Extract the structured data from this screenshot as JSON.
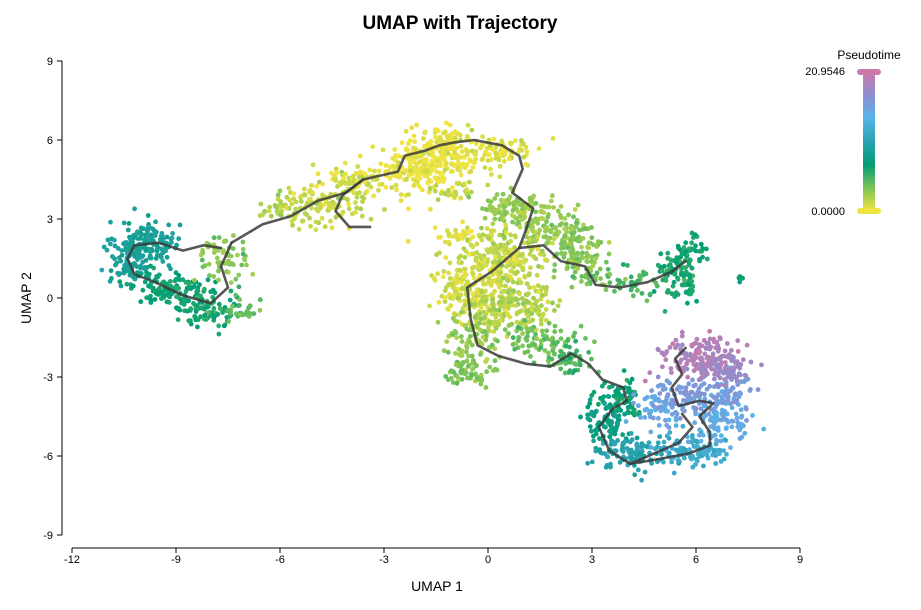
{
  "chart_data": {
    "type": "scatter",
    "title": "UMAP with Trajectory",
    "xlabel": "UMAP 1",
    "ylabel": "UMAP 2",
    "xlim": [
      -12,
      9
    ],
    "ylim": [
      -9,
      9
    ],
    "x_ticks": [
      "-12",
      "-9",
      "-6",
      "-3",
      "0",
      "3",
      "6",
      "9"
    ],
    "y_ticks": [
      "9",
      "6",
      "3",
      "0",
      "-3",
      "-6",
      "-9"
    ],
    "grid": false,
    "color_by": "Pseudotime",
    "colorbar": {
      "title": "Pseudotime",
      "min_label": "0.0000",
      "max_label": "20.9546",
      "min": 0,
      "max": 20.9546,
      "colors": [
        "#f0e442",
        "#7cc35a",
        "#009e73",
        "#2aa1b0",
        "#56b4e9",
        "#8e8ed0",
        "#cc79a7"
      ],
      "placement": "top-right"
    },
    "clusters": [
      {
        "cx": -9.8,
        "cy": 2.1,
        "sx": 0.45,
        "sy": 0.4,
        "n": 160,
        "pt": 9.0
      },
      {
        "cx": -10.3,
        "cy": 1.2,
        "sx": 0.35,
        "sy": 0.4,
        "n": 70,
        "pt": 9.2
      },
      {
        "cx": -9.0,
        "cy": 0.3,
        "sx": 0.6,
        "sy": 0.3,
        "n": 120,
        "pt": 6.8
      },
      {
        "cx": -8.0,
        "cy": -0.5,
        "sx": 0.5,
        "sy": 0.3,
        "n": 80,
        "pt": 6.2
      },
      {
        "cx": -7.6,
        "cy": 1.5,
        "sx": 0.35,
        "sy": 0.5,
        "n": 60,
        "pt": 3.2
      },
      {
        "cx": -7.1,
        "cy": -0.3,
        "sx": 0.3,
        "sy": 0.3,
        "n": 25,
        "pt": 4.0
      },
      {
        "cx": -6.0,
        "cy": 3.4,
        "sx": 0.35,
        "sy": 0.2,
        "n": 30,
        "pt": 2.0
      },
      {
        "cx": -4.7,
        "cy": 3.6,
        "sx": 0.7,
        "sy": 0.5,
        "n": 130,
        "pt": 1.3
      },
      {
        "cx": -3.8,
        "cy": 4.5,
        "sx": 0.5,
        "sy": 0.3,
        "n": 60,
        "pt": 0.6
      },
      {
        "cx": -2.0,
        "cy": 4.9,
        "sx": 0.6,
        "sy": 0.5,
        "n": 190,
        "pt": 0.2
      },
      {
        "cx": -1.2,
        "cy": 5.7,
        "sx": 0.6,
        "sy": 0.35,
        "n": 130,
        "pt": 0.1
      },
      {
        "cx": 0.3,
        "cy": 5.5,
        "sx": 0.5,
        "sy": 0.4,
        "n": 80,
        "pt": 0.7
      },
      {
        "cx": -1.0,
        "cy": 4.1,
        "sx": 0.4,
        "sy": 0.3,
        "n": 30,
        "pt": 1.4
      },
      {
        "cx": -0.7,
        "cy": 2.4,
        "sx": 0.5,
        "sy": 0.25,
        "n": 40,
        "pt": 0.5
      },
      {
        "cx": 0.8,
        "cy": 3.3,
        "sx": 0.5,
        "sy": 0.4,
        "n": 130,
        "pt": 2.6
      },
      {
        "cx": 2.1,
        "cy": 2.5,
        "sx": 0.5,
        "sy": 0.4,
        "n": 110,
        "pt": 2.8
      },
      {
        "cx": 2.6,
        "cy": 1.5,
        "sx": 0.4,
        "sy": 0.4,
        "n": 70,
        "pt": 3.3
      },
      {
        "cx": 3.3,
        "cy": 0.8,
        "sx": 0.4,
        "sy": 0.3,
        "n": 30,
        "pt": 3.8
      },
      {
        "cx": 0.5,
        "cy": 1.6,
        "sx": 0.6,
        "sy": 0.5,
        "n": 170,
        "pt": 1.5
      },
      {
        "cx": -0.4,
        "cy": 0.4,
        "sx": 0.55,
        "sy": 0.6,
        "n": 210,
        "pt": 0.9
      },
      {
        "cx": 0.7,
        "cy": -0.3,
        "sx": 0.6,
        "sy": 0.5,
        "n": 170,
        "pt": 1.8
      },
      {
        "cx": -0.4,
        "cy": -1.4,
        "sx": 0.4,
        "sy": 0.5,
        "n": 90,
        "pt": 2.6
      },
      {
        "cx": -0.6,
        "cy": -2.8,
        "sx": 0.35,
        "sy": 0.25,
        "n": 60,
        "pt": 3.2
      },
      {
        "cx": 1.6,
        "cy": -1.6,
        "sx": 0.6,
        "sy": 0.4,
        "n": 90,
        "pt": 3.8
      },
      {
        "cx": 2.4,
        "cy": -2.3,
        "sx": 0.35,
        "sy": 0.3,
        "n": 40,
        "pt": 5.2
      },
      {
        "cx": 5.4,
        "cy": 1.1,
        "sx": 0.3,
        "sy": 0.3,
        "n": 55,
        "pt": 6.3
      },
      {
        "cx": 5.8,
        "cy": 1.7,
        "sx": 0.3,
        "sy": 0.3,
        "n": 40,
        "pt": 6.8
      },
      {
        "cx": 4.5,
        "cy": 0.6,
        "sx": 0.4,
        "sy": 0.3,
        "n": 35,
        "pt": 5.2
      },
      {
        "cx": 5.5,
        "cy": 0.3,
        "sx": 0.3,
        "sy": 0.3,
        "n": 25,
        "pt": 6.5
      },
      {
        "cx": 7.3,
        "cy": 0.7,
        "sx": 0.06,
        "sy": 0.06,
        "n": 5,
        "pt": 7.0
      },
      {
        "cx": 3.8,
        "cy": -3.8,
        "sx": 0.3,
        "sy": 0.35,
        "n": 70,
        "pt": 7.0
      },
      {
        "cx": 3.4,
        "cy": -4.8,
        "sx": 0.35,
        "sy": 0.45,
        "n": 90,
        "pt": 8.0
      },
      {
        "cx": 4.2,
        "cy": -5.9,
        "sx": 0.6,
        "sy": 0.3,
        "n": 110,
        "pt": 10.5
      },
      {
        "cx": 5.8,
        "cy": -5.8,
        "sx": 0.5,
        "sy": 0.3,
        "n": 100,
        "pt": 12.3
      },
      {
        "cx": 6.7,
        "cy": -4.6,
        "sx": 0.4,
        "sy": 0.5,
        "n": 100,
        "pt": 14.8
      },
      {
        "cx": 7.1,
        "cy": -3.5,
        "sx": 0.3,
        "sy": 0.4,
        "n": 60,
        "pt": 16.0
      },
      {
        "cx": 4.9,
        "cy": -4.2,
        "sx": 0.35,
        "sy": 0.35,
        "n": 60,
        "pt": 15.0
      },
      {
        "cx": 5.8,
        "cy": -3.7,
        "sx": 0.45,
        "sy": 0.35,
        "n": 70,
        "pt": 16.5
      },
      {
        "cx": 6.1,
        "cy": -2.2,
        "sx": 0.6,
        "sy": 0.4,
        "n": 140,
        "pt": 19.5
      },
      {
        "cx": 6.8,
        "cy": -2.7,
        "sx": 0.4,
        "sy": 0.3,
        "n": 60,
        "pt": 18.5
      }
    ],
    "trajectory": [
      [
        [
          -7.4,
          2.1
        ],
        [
          -6.5,
          2.8
        ],
        [
          -5.7,
          3.1
        ],
        [
          -4.9,
          3.7
        ],
        [
          -4.1,
          4.0
        ],
        [
          -3.6,
          4.5
        ],
        [
          -2.6,
          4.8
        ],
        [
          -2.4,
          5.4
        ],
        [
          -1.8,
          5.6
        ],
        [
          -1.4,
          5.8
        ],
        [
          -1.0,
          5.9
        ],
        [
          -0.4,
          6.0
        ],
        [
          0.4,
          5.8
        ],
        [
          0.9,
          5.4
        ],
        [
          1.0,
          4.9
        ],
        [
          0.7,
          4.0
        ],
        [
          1.3,
          3.4
        ],
        [
          1.1,
          2.6
        ],
        [
          0.9,
          1.9
        ]
      ],
      [
        [
          -3.6,
          4.5
        ],
        [
          -4.2,
          3.9
        ],
        [
          -4.4,
          3.3
        ],
        [
          -4.0,
          2.7
        ],
        [
          -3.4,
          2.7
        ]
      ],
      [
        [
          -7.4,
          2.1
        ],
        [
          -7.7,
          1.2
        ],
        [
          -7.5,
          0.4
        ],
        [
          -8.0,
          -0.2
        ],
        [
          -8.8,
          0.1
        ],
        [
          -9.6,
          0.6
        ],
        [
          -10.2,
          0.9
        ],
        [
          -10.4,
          1.5
        ],
        [
          -10.2,
          2.0
        ],
        [
          -9.5,
          2.1
        ],
        [
          -8.8,
          1.8
        ],
        [
          -8.2,
          2.0
        ],
        [
          -7.7,
          1.9
        ]
      ],
      [
        [
          0.9,
          1.9
        ],
        [
          0.1,
          1.0
        ],
        [
          -0.6,
          0.4
        ],
        [
          -0.5,
          -0.8
        ],
        [
          -0.3,
          -1.8
        ],
        [
          0.3,
          -2.2
        ],
        [
          1.1,
          -2.5
        ],
        [
          1.8,
          -2.6
        ],
        [
          2.4,
          -2.1
        ],
        [
          2.9,
          -2.5
        ],
        [
          3.3,
          -3.1
        ],
        [
          3.9,
          -3.4
        ],
        [
          4.0,
          -3.9
        ],
        [
          3.6,
          -4.2
        ],
        [
          3.2,
          -4.9
        ],
        [
          3.5,
          -5.8
        ],
        [
          4.1,
          -6.3
        ],
        [
          5.0,
          -6.1
        ],
        [
          5.8,
          -5.9
        ],
        [
          6.4,
          -5.6
        ],
        [
          6.4,
          -5.1
        ],
        [
          6.1,
          -4.5
        ],
        [
          6.5,
          -4.0
        ],
        [
          6.1,
          -3.9
        ],
        [
          5.5,
          -4.1
        ],
        [
          5.3,
          -3.4
        ],
        [
          5.6,
          -2.9
        ],
        [
          5.4,
          -2.3
        ],
        [
          5.7,
          -1.9
        ]
      ],
      [
        [
          0.9,
          1.9
        ],
        [
          1.6,
          2.0
        ],
        [
          2.1,
          1.4
        ],
        [
          2.8,
          1.2
        ],
        [
          3.1,
          0.5
        ],
        [
          3.8,
          0.4
        ],
        [
          4.6,
          0.6
        ],
        [
          5.3,
          1.0
        ],
        [
          5.7,
          1.4
        ]
      ],
      [
        [
          4.1,
          -6.3
        ],
        [
          5.5,
          -5.5
        ],
        [
          5.9,
          -4.9
        ],
        [
          5.6,
          -4.4
        ]
      ]
    ]
  }
}
